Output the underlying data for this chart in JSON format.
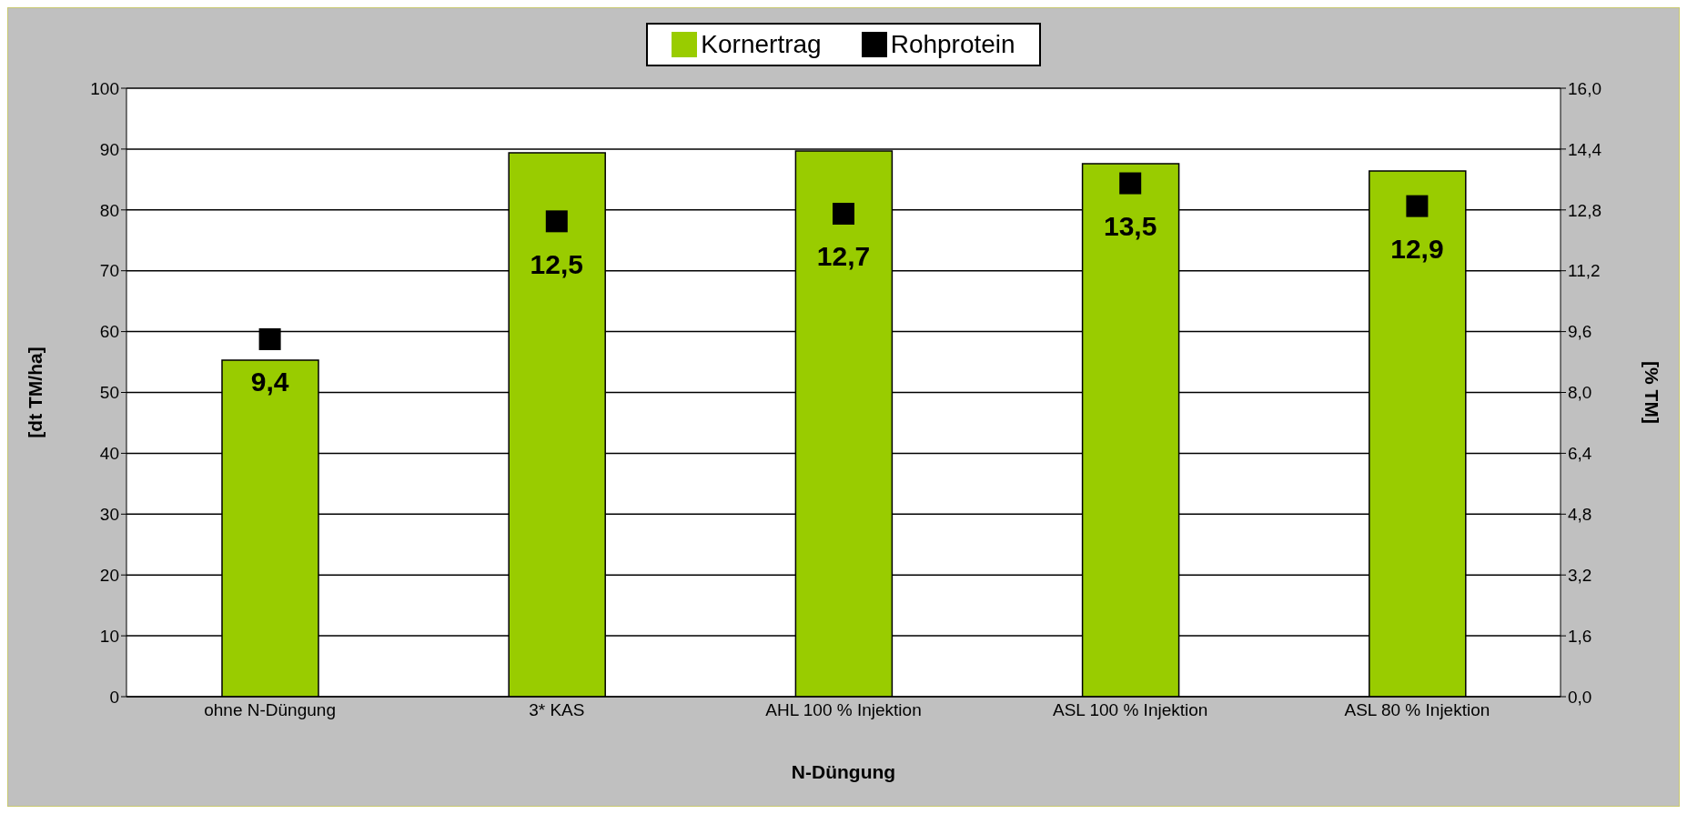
{
  "chart_data": {
    "type": "bar",
    "xlabel": "N-Düngung",
    "ylabel": "[dt TM/ha]",
    "y2label": "[% TM]",
    "categories": [
      "ohne N-Düngung",
      "3* KAS",
      "AHL 100 % Injektion",
      "ASL 100 % Injektion",
      "ASL 80 % Injektion"
    ],
    "series": [
      {
        "name": "Kornertrag",
        "color": "#99cc00",
        "values": [
          55.3,
          89.4,
          89.7,
          87.6,
          86.4
        ]
      },
      {
        "name": "Rohprotein",
        "type": "scatter",
        "axis": "y2",
        "color": "#000000",
        "marker": "square",
        "values": [
          9.4,
          12.5,
          12.7,
          13.5,
          12.9
        ],
        "value_labels": [
          "9,4",
          "12,5",
          "12,7",
          "13,5",
          "12,9"
        ]
      }
    ],
    "ylim": [
      0,
      100
    ],
    "yticks": [
      0,
      10,
      20,
      30,
      40,
      50,
      60,
      70,
      80,
      90,
      100
    ],
    "y2lim": [
      0,
      16
    ],
    "y2ticks": [
      {
        "value": 0,
        "label": "0,0"
      },
      {
        "value": 1.6,
        "label": "1,6"
      },
      {
        "value": 3.2,
        "label": "3,2"
      },
      {
        "value": 4.8,
        "label": "4,8"
      },
      {
        "value": 6.4,
        "label": "6,4"
      },
      {
        "value": 8,
        "label": "8,0"
      },
      {
        "value": 9.6,
        "label": "9,6"
      },
      {
        "value": 11.2,
        "label": "11,2"
      },
      {
        "value": 12.8,
        "label": "12,8"
      },
      {
        "value": 14.4,
        "label": "14,4"
      },
      {
        "value": 16,
        "label": "16,0"
      }
    ],
    "grid": "y",
    "legend": "top"
  }
}
